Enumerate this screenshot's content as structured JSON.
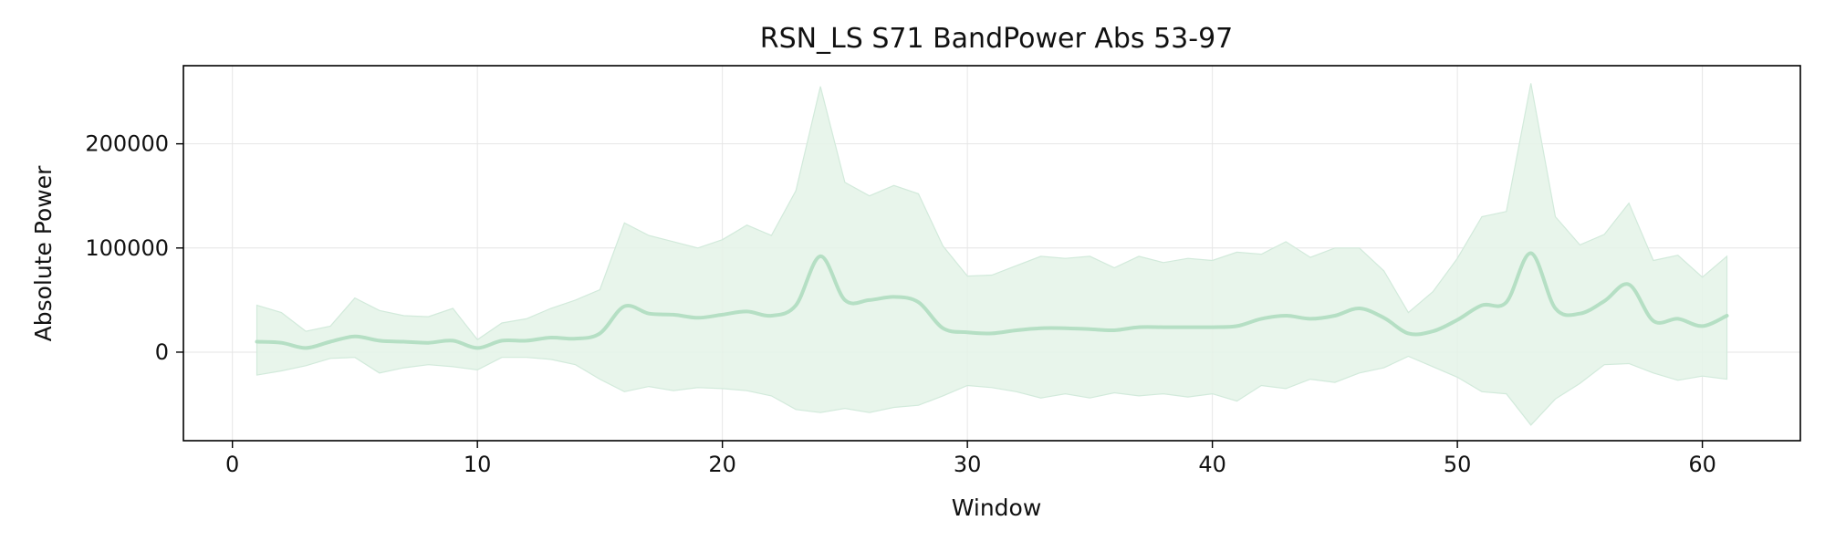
{
  "chart_data": {
    "type": "line",
    "title": "RSN_LS S71 BandPower Abs 53-97",
    "xlabel": "Window",
    "ylabel": "Absolute Power",
    "xlim": [
      -2,
      64
    ],
    "ylim": [
      -85000,
      275000
    ],
    "xticks": [
      0,
      10,
      20,
      30,
      40,
      50,
      60
    ],
    "yticks": [
      0,
      100000,
      200000
    ],
    "ytick_labels": [
      "0",
      "100000",
      "200000"
    ],
    "grid": true,
    "legend": "none",
    "colors": {
      "line": "#b5dfc4",
      "band": "#e4f3e8",
      "band_edge": "#d2eadb",
      "grid": "#e6e6e6",
      "frame": "#000000"
    },
    "series": [
      {
        "x": [
          1,
          2,
          3,
          4,
          5,
          6,
          7,
          8,
          9,
          10,
          11,
          12,
          13,
          14,
          15,
          16,
          17,
          18,
          19,
          20,
          21,
          22,
          23,
          24,
          25,
          26,
          27,
          28,
          29,
          30,
          31,
          32,
          33,
          34,
          35,
          36,
          37,
          38,
          39,
          40,
          41,
          42,
          43,
          44,
          45,
          46,
          47,
          48,
          49,
          50,
          51,
          52,
          53,
          54,
          55,
          56,
          57,
          58,
          59,
          60,
          61
        ],
        "mean": [
          10000,
          9000,
          4000,
          10000,
          15000,
          11000,
          10000,
          9000,
          11000,
          4000,
          11000,
          11000,
          14000,
          13000,
          18000,
          44000,
          37000,
          36000,
          33000,
          36000,
          39000,
          35000,
          45000,
          92000,
          50000,
          50000,
          53000,
          48000,
          23000,
          19000,
          18000,
          21000,
          23000,
          23000,
          22000,
          21000,
          24000,
          24000,
          24000,
          24000,
          25000,
          32000,
          35000,
          32000,
          35000,
          42000,
          33000,
          18000,
          20000,
          31000,
          45000,
          48000,
          95000,
          42000,
          37000,
          49000,
          65000,
          30000,
          32000,
          25000,
          35000
        ],
        "upper": [
          45000,
          38000,
          20000,
          25000,
          52000,
          40000,
          35000,
          34000,
          42000,
          12000,
          28000,
          32000,
          42000,
          50000,
          60000,
          124000,
          112000,
          106000,
          100000,
          108000,
          122000,
          112000,
          155000,
          255000,
          163000,
          150000,
          160000,
          152000,
          102000,
          73000,
          74000,
          83000,
          92000,
          90000,
          92000,
          81000,
          92000,
          86000,
          90000,
          88000,
          96000,
          94000,
          106000,
          91000,
          100000,
          100000,
          78000,
          38000,
          58000,
          90000,
          130000,
          135000,
          258000,
          130000,
          103000,
          113000,
          143000,
          88000,
          93000,
          72000,
          92000
        ],
        "lower": [
          -22000,
          -18000,
          -13000,
          -6000,
          -5000,
          -20000,
          -15000,
          -12000,
          -14000,
          -17000,
          -5000,
          -5000,
          -7000,
          -12000,
          -26000,
          -38000,
          -33000,
          -37000,
          -34000,
          -35000,
          -37000,
          -42000,
          -55000,
          -58000,
          -54000,
          -58000,
          -53000,
          -51000,
          -42000,
          -32000,
          -34000,
          -38000,
          -44000,
          -40000,
          -44000,
          -39000,
          -42000,
          -40000,
          -43000,
          -40000,
          -47000,
          -32000,
          -35000,
          -26000,
          -29000,
          -20000,
          -15000,
          -4000,
          -14000,
          -24000,
          -38000,
          -40000,
          -70000,
          -45000,
          -30000,
          -12000,
          -11000,
          -20000,
          -27000,
          -23000,
          -26000
        ]
      }
    ]
  }
}
